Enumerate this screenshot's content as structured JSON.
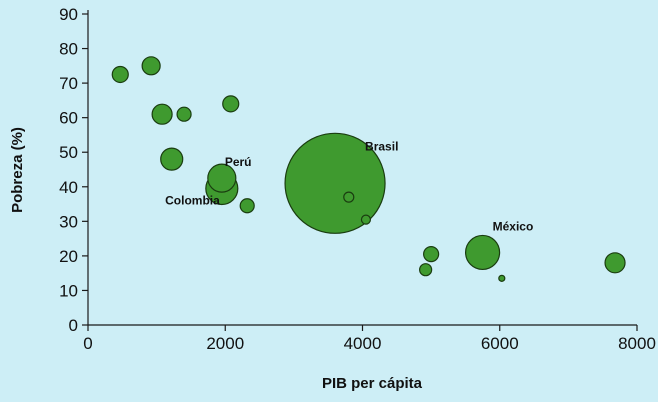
{
  "chart_data": {
    "type": "scatter",
    "title": "",
    "xlabel": "PIB per cápita",
    "ylabel": "Pobreza (%)",
    "xlim": [
      0,
      8000
    ],
    "ylim": [
      0,
      90
    ],
    "x_ticks": [
      "0",
      "2000",
      "4000",
      "6000",
      "8000"
    ],
    "y_ticks": [
      "0",
      "10",
      "20",
      "30",
      "40",
      "50",
      "60",
      "70",
      "80",
      "90"
    ],
    "background": "#cdeef6",
    "bubble_color": "#3f9a2f",
    "grid": false,
    "points": [
      {
        "x": 470,
        "y": 72.5,
        "size": 8,
        "label": ""
      },
      {
        "x": 920,
        "y": 75,
        "size": 9,
        "label": ""
      },
      {
        "x": 1080,
        "y": 61,
        "size": 10,
        "label": ""
      },
      {
        "x": 1400,
        "y": 61,
        "size": 7,
        "label": ""
      },
      {
        "x": 2080,
        "y": 64,
        "size": 8,
        "label": ""
      },
      {
        "x": 1220,
        "y": 48,
        "size": 11,
        "label": ""
      },
      {
        "x": 1950,
        "y": 42.5,
        "size": 14,
        "label": "Perú"
      },
      {
        "x": 1950,
        "y": 39.5,
        "size": 16,
        "label": "Colombia"
      },
      {
        "x": 2320,
        "y": 34.5,
        "size": 7,
        "label": ""
      },
      {
        "x": 3600,
        "y": 41,
        "size": 50,
        "label": "Brasil"
      },
      {
        "x": 3800,
        "y": 37,
        "size": 5,
        "label": ""
      },
      {
        "x": 4050,
        "y": 30.5,
        "size": 4.5,
        "label": ""
      },
      {
        "x": 5000,
        "y": 20.5,
        "size": 7.5,
        "label": ""
      },
      {
        "x": 4920,
        "y": 16,
        "size": 6,
        "label": ""
      },
      {
        "x": 5750,
        "y": 21,
        "size": 17,
        "label": "México"
      },
      {
        "x": 6030,
        "y": 13.5,
        "size": 3,
        "label": ""
      },
      {
        "x": 7680,
        "y": 18,
        "size": 10,
        "label": ""
      }
    ]
  }
}
